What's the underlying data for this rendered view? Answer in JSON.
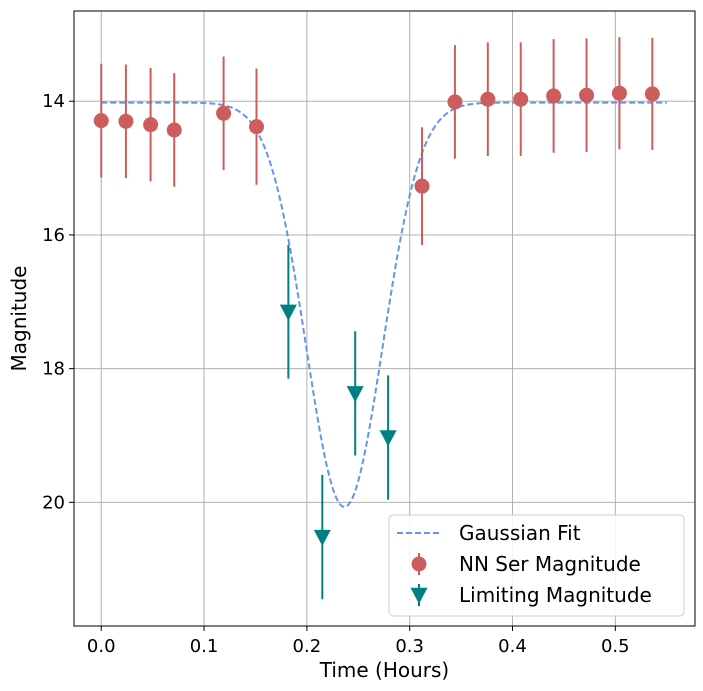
{
  "chart_data": {
    "type": "scatter",
    "title": "",
    "xlabel": "Time (Hours)",
    "ylabel": "Magnitude",
    "xlim": [
      -0.0265,
      0.5775
    ],
    "ylim": [
      21.85,
      12.65
    ],
    "y_inverted": true,
    "x_ticks": [
      0.0,
      0.1,
      0.2,
      0.3,
      0.4,
      0.5
    ],
    "x_tick_labels": [
      "0.0",
      "0.1",
      "0.2",
      "0.3",
      "0.4",
      "0.5"
    ],
    "y_ticks": [
      14,
      16,
      18,
      20
    ],
    "y_tick_labels": [
      "14",
      "16",
      "18",
      "20"
    ],
    "grid": true,
    "legend_position": "lower-right",
    "series": [
      {
        "name": "Gaussian Fit",
        "kind": "line",
        "style": "dashed",
        "color": "#6495ED",
        "model": {
          "baseline": 14.02,
          "depth": 6.05,
          "center": 0.2365,
          "sigma": 0.037,
          "x_start": 0.0,
          "x_end": 0.55
        }
      },
      {
        "name": "NN Ser Magnitude",
        "kind": "errorbar",
        "marker": "circle",
        "color": "#CD5C5C",
        "points": [
          {
            "x": 0.0,
            "y": 14.29,
            "err": 0.85
          },
          {
            "x": 0.024,
            "y": 14.3,
            "err": 0.85
          },
          {
            "x": 0.048,
            "y": 14.35,
            "err": 0.85
          },
          {
            "x": 0.071,
            "y": 14.43,
            "err": 0.85
          },
          {
            "x": 0.119,
            "y": 14.18,
            "err": 0.85
          },
          {
            "x": 0.151,
            "y": 14.38,
            "err": 0.87
          },
          {
            "x": 0.312,
            "y": 15.27,
            "err": 0.88
          },
          {
            "x": 0.344,
            "y": 14.01,
            "err": 0.85
          },
          {
            "x": 0.376,
            "y": 13.97,
            "err": 0.85
          },
          {
            "x": 0.408,
            "y": 13.97,
            "err": 0.85
          },
          {
            "x": 0.44,
            "y": 13.92,
            "err": 0.85
          },
          {
            "x": 0.472,
            "y": 13.91,
            "err": 0.85
          },
          {
            "x": 0.504,
            "y": 13.88,
            "err": 0.84
          },
          {
            "x": 0.536,
            "y": 13.89,
            "err": 0.84
          }
        ]
      },
      {
        "name": "Limiting Magnitude",
        "kind": "errorbar",
        "marker": "triangle-down",
        "color": "#008080",
        "points": [
          {
            "x": 0.182,
            "y": 17.15,
            "err": 1.0
          },
          {
            "x": 0.215,
            "y": 20.52,
            "err": 0.93
          },
          {
            "x": 0.247,
            "y": 18.37,
            "err": 0.93
          },
          {
            "x": 0.279,
            "y": 19.03,
            "err": 0.93
          }
        ]
      }
    ]
  },
  "colors": {
    "grid": "#b0b0b0",
    "axes": "#000000",
    "legend_border": "#cccccc"
  }
}
